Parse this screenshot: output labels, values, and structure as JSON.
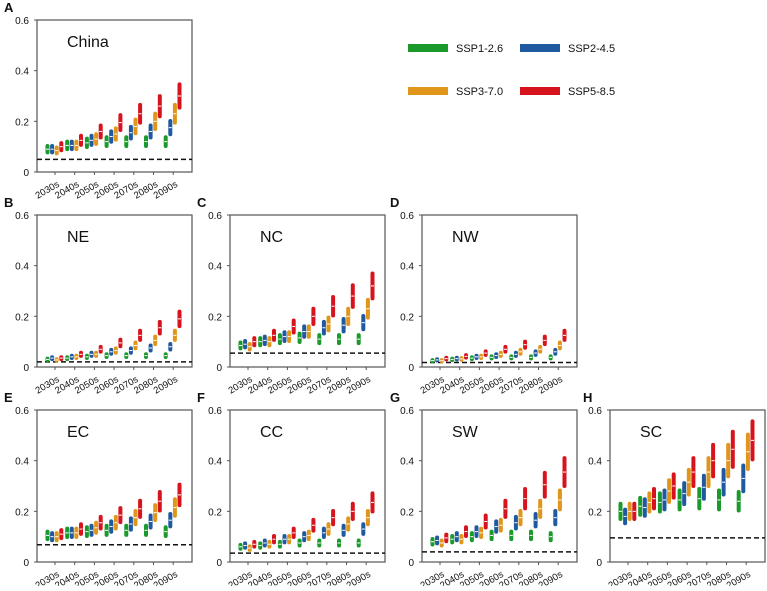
{
  "chart_data": {
    "type": "range-bar",
    "legend": {
      "placement": "top-right",
      "entries": [
        {
          "name": "SSP1-2.6",
          "color": "#1a9a2a"
        },
        {
          "name": "SSP2-4.5",
          "color": "#1f5aa0"
        },
        {
          "name": "SSP3-7.0",
          "color": "#e0961a"
        },
        {
          "name": "SSP5-8.5",
          "color": "#d7141e"
        }
      ]
    },
    "categories": [
      "2030s",
      "2040s",
      "2050s",
      "2060s",
      "2070s",
      "2080s",
      "2090s"
    ],
    "ylim": [
      0,
      0.6
    ],
    "yticks": [
      "0",
      "0.2",
      "0.4",
      "0.6"
    ],
    "ytick_values": [
      0,
      0.2,
      0.4,
      0.6
    ],
    "rel_halfrange": 0.16,
    "panels": [
      {
        "letter": "A",
        "region": "China",
        "baseline": 0.05,
        "series": [
          [
            0.09,
            0.105,
            0.115,
            0.12,
            0.12,
            0.12,
            0.12
          ],
          [
            0.09,
            0.105,
            0.125,
            0.14,
            0.155,
            0.16,
            0.175
          ],
          [
            0.085,
            0.105,
            0.13,
            0.15,
            0.18,
            0.2,
            0.23
          ],
          [
            0.1,
            0.125,
            0.16,
            0.195,
            0.23,
            0.26,
            0.3
          ]
        ]
      },
      {
        "letter": "B",
        "region": "NE",
        "baseline": 0.02,
        "series": [
          [
            0.03,
            0.035,
            0.04,
            0.045,
            0.045,
            0.045,
            0.045
          ],
          [
            0.035,
            0.04,
            0.05,
            0.06,
            0.065,
            0.075,
            0.08
          ],
          [
            0.028,
            0.04,
            0.05,
            0.065,
            0.085,
            0.105,
            0.125
          ],
          [
            0.035,
            0.05,
            0.07,
            0.095,
            0.125,
            0.155,
            0.19
          ]
        ]
      },
      {
        "letter": "C",
        "region": "NC",
        "baseline": 0.055,
        "series": [
          [
            0.085,
            0.1,
            0.11,
            0.115,
            0.11,
            0.11,
            0.11
          ],
          [
            0.09,
            0.105,
            0.12,
            0.14,
            0.155,
            0.165,
            0.175
          ],
          [
            0.08,
            0.1,
            0.12,
            0.14,
            0.17,
            0.2,
            0.23
          ],
          [
            0.1,
            0.125,
            0.16,
            0.2,
            0.24,
            0.28,
            0.32
          ]
        ]
      },
      {
        "letter": "D",
        "region": "NW",
        "baseline": 0.018,
        "series": [
          [
            0.025,
            0.03,
            0.035,
            0.038,
            0.038,
            0.038,
            0.038
          ],
          [
            0.028,
            0.033,
            0.04,
            0.045,
            0.05,
            0.055,
            0.06
          ],
          [
            0.025,
            0.032,
            0.04,
            0.05,
            0.06,
            0.07,
            0.085
          ],
          [
            0.033,
            0.042,
            0.055,
            0.07,
            0.088,
            0.105,
            0.125
          ]
        ]
      },
      {
        "letter": "E",
        "region": "EC",
        "baseline": 0.068,
        "series": [
          [
            0.105,
            0.115,
            0.12,
            0.125,
            0.125,
            0.125,
            0.12
          ],
          [
            0.1,
            0.115,
            0.125,
            0.14,
            0.15,
            0.16,
            0.165
          ],
          [
            0.1,
            0.115,
            0.135,
            0.155,
            0.175,
            0.195,
            0.215
          ],
          [
            0.11,
            0.13,
            0.155,
            0.185,
            0.21,
            0.24,
            0.265
          ]
        ]
      },
      {
        "letter": "F",
        "region": "CC",
        "baseline": 0.035,
        "series": [
          [
            0.06,
            0.065,
            0.07,
            0.075,
            0.075,
            0.075,
            0.075
          ],
          [
            0.065,
            0.075,
            0.09,
            0.1,
            0.115,
            0.125,
            0.13
          ],
          [
            0.055,
            0.07,
            0.09,
            0.105,
            0.13,
            0.15,
            0.175
          ],
          [
            0.07,
            0.09,
            0.115,
            0.145,
            0.175,
            0.2,
            0.235
          ]
        ]
      },
      {
        "letter": "G",
        "region": "SW",
        "baseline": 0.04,
        "series": [
          [
            0.08,
            0.09,
            0.1,
            0.105,
            0.105,
            0.105,
            0.1
          ],
          [
            0.085,
            0.1,
            0.12,
            0.14,
            0.155,
            0.165,
            0.175
          ],
          [
            0.075,
            0.09,
            0.115,
            0.145,
            0.175,
            0.21,
            0.245
          ],
          [
            0.095,
            0.12,
            0.16,
            0.21,
            0.25,
            0.305,
            0.355
          ]
        ]
      },
      {
        "letter": "H",
        "region": "SC",
        "baseline": 0.095,
        "series": [
          [
            0.2,
            0.22,
            0.235,
            0.245,
            0.25,
            0.245,
            0.24
          ],
          [
            0.18,
            0.215,
            0.245,
            0.27,
            0.295,
            0.315,
            0.33
          ],
          [
            0.2,
            0.235,
            0.28,
            0.315,
            0.355,
            0.4,
            0.435
          ],
          [
            0.2,
            0.25,
            0.3,
            0.355,
            0.4,
            0.445,
            0.48
          ]
        ]
      }
    ]
  }
}
